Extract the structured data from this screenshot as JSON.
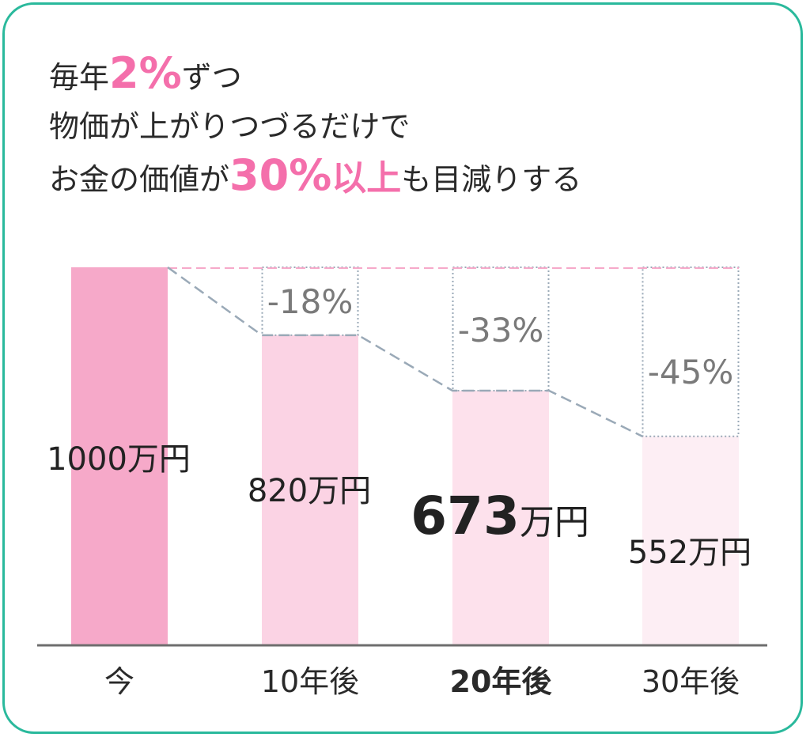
{
  "heading": {
    "line1": {
      "pre": "毎年",
      "hl": "2%",
      "post": "ずつ"
    },
    "line2": "物価が上がりつづるだけで",
    "line3": {
      "pre": "お金の価値が",
      "hl1": "30%",
      "hl2": "以上",
      "post": "も目減りする"
    }
  },
  "colors": {
    "accent": "#f46fab",
    "frame": "#2ab99c",
    "bars": [
      "#f6a9c9",
      "#fbd3e4",
      "#fde1ec",
      "#fdeef4"
    ]
  },
  "chart_data": {
    "type": "bar",
    "categories": [
      "今",
      "10年後",
      "20年後",
      "30年後"
    ],
    "values": [
      1000,
      820,
      673,
      552
    ],
    "value_labels": [
      "1000",
      "820",
      "673",
      "552"
    ],
    "value_unit": "万円",
    "reduction_labels": [
      "",
      "-18%",
      "-33%",
      "-45%"
    ],
    "ylim": [
      0,
      1000
    ],
    "grid": false,
    "legend": "none",
    "reference_line": 1000
  }
}
